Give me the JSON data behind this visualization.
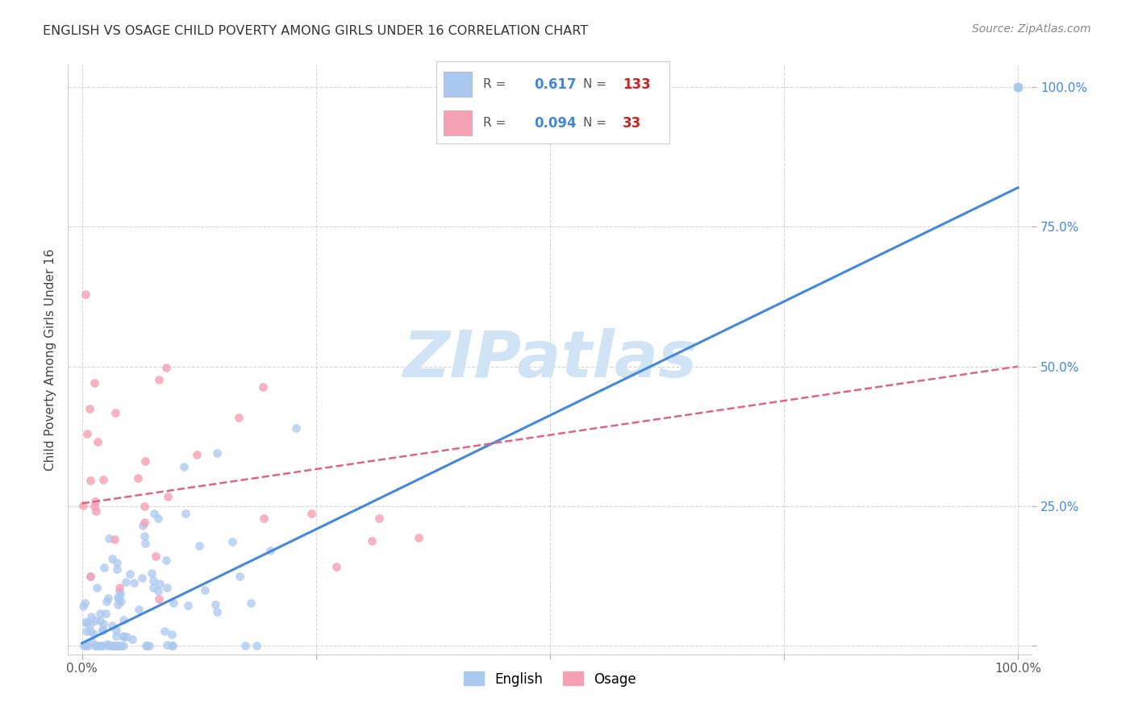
{
  "title": "ENGLISH VS OSAGE CHILD POVERTY AMONG GIRLS UNDER 16 CORRELATION CHART",
  "source": "Source: ZipAtlas.com",
  "ylabel": "Child Poverty Among Girls Under 16",
  "english_R": 0.617,
  "english_N": 133,
  "osage_R": 0.094,
  "osage_N": 33,
  "english_color": "#aac8f0",
  "osage_color": "#f5a0b5",
  "english_line_color": "#4488dd",
  "osage_line_color": "#dd6688",
  "ytick_color": "#4488dd",
  "title_color": "#333333",
  "source_color": "#888888",
  "grid_color": "#cccccc",
  "watermark_color": "#d0e4f5",
  "en_line_start_y": 0.005,
  "en_line_end_y": 0.82,
  "os_line_start_y": 0.255,
  "os_line_end_y": 0.5,
  "xlim": [
    0.0,
    1.0
  ],
  "ylim": [
    0.0,
    1.0
  ],
  "xticks": [
    0.0,
    0.25,
    0.5,
    0.75,
    1.0
  ],
  "xtick_labels": [
    "0.0%",
    "",
    "",
    "",
    "100.0%"
  ],
  "yticks": [
    0.0,
    0.25,
    0.5,
    0.75,
    1.0
  ],
  "ytick_labels": [
    "",
    "25.0%",
    "50.0%",
    "75.0%",
    "100.0%"
  ]
}
